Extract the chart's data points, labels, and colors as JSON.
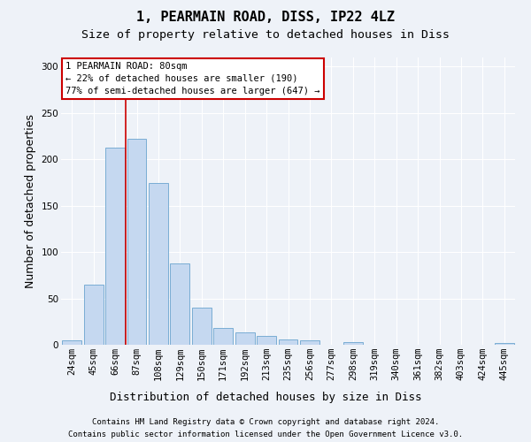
{
  "title1": "1, PEARMAIN ROAD, DISS, IP22 4LZ",
  "title2": "Size of property relative to detached houses in Diss",
  "xlabel": "Distribution of detached houses by size in Diss",
  "ylabel": "Number of detached properties",
  "bar_color": "#c5d8f0",
  "bar_edge_color": "#7aadd4",
  "categories": [
    "24sqm",
    "45sqm",
    "66sqm",
    "87sqm",
    "108sqm",
    "129sqm",
    "150sqm",
    "171sqm",
    "192sqm",
    "213sqm",
    "235sqm",
    "256sqm",
    "277sqm",
    "298sqm",
    "319sqm",
    "340sqm",
    "361sqm",
    "382sqm",
    "403sqm",
    "424sqm",
    "445sqm"
  ],
  "values": [
    5,
    65,
    213,
    222,
    175,
    88,
    40,
    18,
    13,
    10,
    6,
    5,
    0,
    3,
    0,
    0,
    0,
    0,
    0,
    0,
    2
  ],
  "ylim": [
    0,
    310
  ],
  "yticks": [
    0,
    50,
    100,
    150,
    200,
    250,
    300
  ],
  "annotation_text": "1 PEARMAIN ROAD: 80sqm\n← 22% of detached houses are smaller (190)\n77% of semi-detached houses are larger (647) →",
  "vline_color": "#cc0000",
  "annotation_box_color": "#ffffff",
  "annotation_box_edge_color": "#cc0000",
  "footer1": "Contains HM Land Registry data © Crown copyright and database right 2024.",
  "footer2": "Contains public sector information licensed under the Open Government Licence v3.0.",
  "bg_color": "#eef2f8",
  "grid_color": "#ffffff",
  "title1_fontsize": 11,
  "title2_fontsize": 9.5,
  "tick_fontsize": 7.5,
  "ylabel_fontsize": 9,
  "xlabel_fontsize": 9,
  "footer_fontsize": 6.5,
  "annot_fontsize": 7.5
}
